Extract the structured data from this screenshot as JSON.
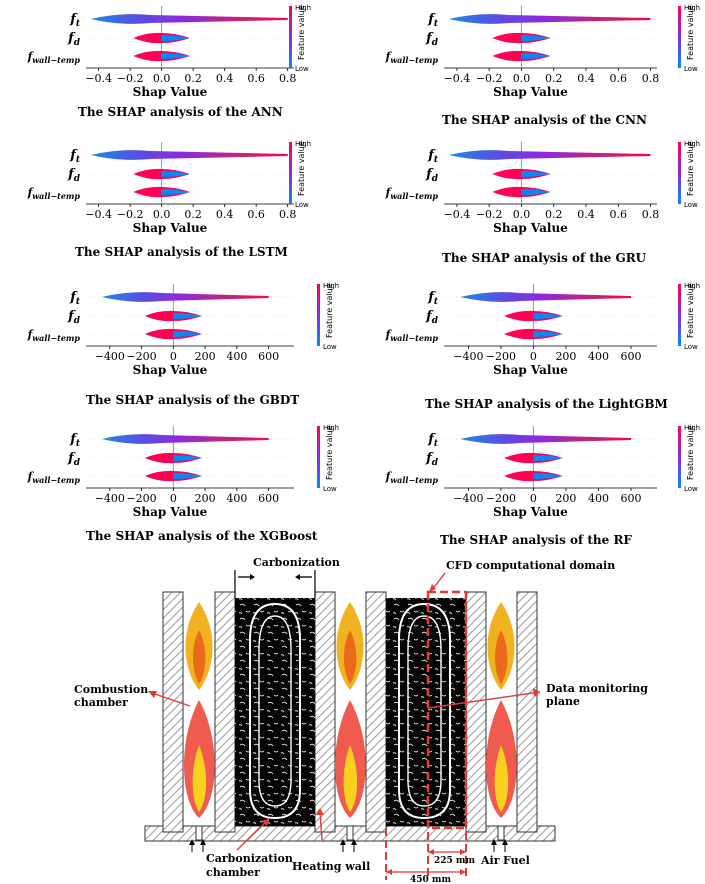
{
  "panels": [
    {
      "title": "The SHAP analysis of the ANN",
      "xlabel": "Shap Value",
      "ticks": [
        "−0.4",
        "−0.2",
        "0.0",
        "0.2",
        "0.4",
        "0.6",
        "0.8"
      ],
      "tick_values": [
        -0.4,
        -0.2,
        0.0,
        0.2,
        0.4,
        0.6,
        0.8
      ],
      "range": [
        -0.48,
        0.84
      ]
    },
    {
      "title": "The SHAP analysis of the CNN",
      "xlabel": "Shap Value",
      "ticks": [
        "−0.4",
        "−0.2",
        "0.0",
        "0.2",
        "0.4",
        "0.6",
        "0.8"
      ],
      "tick_values": [
        -0.4,
        -0.2,
        0.0,
        0.2,
        0.4,
        0.6,
        0.8
      ],
      "range": [
        -0.48,
        0.84
      ]
    },
    {
      "title": "The SHAP analysis of the LSTM",
      "xlabel": "Shap Value",
      "ticks": [
        "−0.4",
        "−0.2",
        "0.0",
        "0.2",
        "0.4",
        "0.6",
        "0.8"
      ],
      "tick_values": [
        -0.4,
        -0.2,
        0.0,
        0.2,
        0.4,
        0.6,
        0.8
      ],
      "range": [
        -0.48,
        0.84
      ]
    },
    {
      "title": "The SHAP analysis of the GRU",
      "xlabel": "Shap Value",
      "ticks": [
        "−0.4",
        "−0.2",
        "0.0",
        "0.2",
        "0.4",
        "0.6",
        "0.8"
      ],
      "tick_values": [
        -0.4,
        -0.2,
        0.0,
        0.2,
        0.4,
        0.6,
        0.8
      ],
      "range": [
        -0.48,
        0.84
      ]
    },
    {
      "title": "The SHAP analysis of the GBDT",
      "xlabel": "Shap Value",
      "ticks": [
        "−400",
        "−200",
        "0",
        "200",
        "400",
        "600"
      ],
      "tick_values": [
        -400,
        -200,
        0,
        200,
        400,
        600
      ],
      "range": [
        -550,
        760
      ]
    },
    {
      "title": "The SHAP analysis of the LightGBM",
      "xlabel": "Shap Value",
      "ticks": [
        "−400",
        "−200",
        "0",
        "200",
        "400",
        "600"
      ],
      "tick_values": [
        -400,
        -200,
        0,
        200,
        400,
        600
      ],
      "range": [
        -550,
        760
      ]
    },
    {
      "title": "The SHAP analysis of the XGBoost",
      "xlabel": "Shap Value",
      "ticks": [
        "−400",
        "−200",
        "0",
        "200",
        "400",
        "600"
      ],
      "tick_values": [
        -400,
        -200,
        0,
        200,
        400,
        600
      ],
      "range": [
        -550,
        760
      ]
    },
    {
      "title": "The SHAP analysis of the RF",
      "xlabel": "Shap Value",
      "ticks": [
        "−400",
        "−200",
        "0",
        "200",
        "400",
        "600"
      ],
      "tick_values": [
        -400,
        -200,
        0,
        200,
        400,
        600
      ],
      "range": [
        -550,
        760
      ]
    }
  ],
  "features": {
    "ft": {
      "base": "f",
      "sub": "t"
    },
    "fd": {
      "base": "f",
      "sub": "d"
    },
    "fwall": {
      "base": "f",
      "sub": "wall−temp"
    }
  },
  "colorbar": {
    "high": "High",
    "low": "Low",
    "label": "Feature value",
    "color_high": "#ff0052",
    "color_mid": "#8a2be2",
    "color_low": "#008bfb"
  },
  "diagram": {
    "carbonization": "Carbonization",
    "cfd_domain": "CFD computational domain",
    "combustion_line1": "Combustion",
    "combustion_line2": "chamber",
    "monitoring_line1": "Data monitoring",
    "monitoring_line2": "plane",
    "carb_chamber_line1": "Carbonization",
    "carb_chamber_line2": "chamber",
    "heating_wall": "Heating wall",
    "air": "Air",
    "fuel": "Fuel",
    "dim_225": "225 mm",
    "dim_450": "450 mm"
  }
}
